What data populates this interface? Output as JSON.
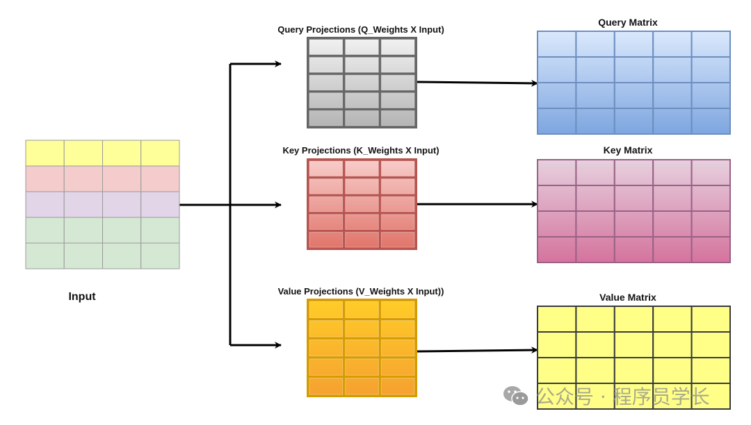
{
  "input": {
    "label": "Input",
    "row_colors": [
      "#ffff99",
      "#f4cccc",
      "#e1d5e7",
      "#d5e8d4",
      "#d5e8d4"
    ],
    "border": "#999999"
  },
  "projections": [
    {
      "id": "query",
      "label": "Query Projections (Q_Weights X Input)",
      "border": "#666666",
      "top": "#f2f2f2",
      "bottom": "#b3b3b3"
    },
    {
      "id": "key",
      "label": "Key Projections (K_Weights X Input)",
      "border": "#b85450",
      "top": "#f8cecc",
      "bottom": "#e07368"
    },
    {
      "id": "value",
      "label": "Value Projections (V_Weights X Input))",
      "border": "#d79b00",
      "top": "#ffcd28",
      "bottom": "#f5a030"
    }
  ],
  "outputs": [
    {
      "id": "query",
      "label": "Query Matrix",
      "border": "#6c8ebf",
      "top": "#dae8fc",
      "bottom": "#7ea6e0"
    },
    {
      "id": "key",
      "label": "Key Matrix",
      "border": "#996185",
      "top": "#e6d0de",
      "bottom": "#d5739d"
    },
    {
      "id": "value",
      "label": "Value Matrix",
      "border": "#36393d",
      "top": "#ffff88",
      "bottom": "#ffff88"
    }
  ],
  "watermark": {
    "text": "公众号 · 程序员学长",
    "icon": "wechat-icon"
  }
}
